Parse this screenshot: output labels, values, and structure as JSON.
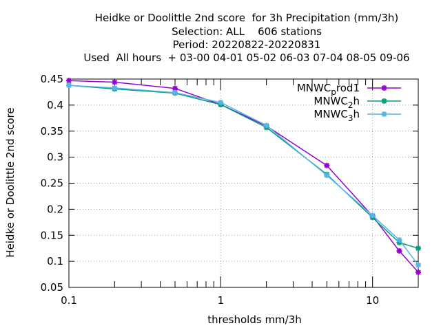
{
  "chart_data": {
    "type": "line",
    "title_lines": [
      "Heidke or Doolittle 2nd score  for 3h Precipitation (mm/3h)",
      "Selection: ALL    606 stations",
      "Period: 20220822-20220831",
      "Used  All hours  + 03-00 04-01 05-02 06-03 07-04 08-05 09-06"
    ],
    "xlabel": "thresholds mm/3h",
    "ylabel": "Heidke or Doolittle 2nd score",
    "x_scale": "log",
    "xlim": [
      0.1,
      20
    ],
    "ylim": [
      0.05,
      0.45
    ],
    "x_ticks": [
      0.1,
      1,
      10
    ],
    "x_tick_labels": [
      "0.1",
      "1",
      "10"
    ],
    "y_ticks": [
      0.05,
      0.1,
      0.15,
      0.2,
      0.25,
      0.3,
      0.35,
      0.4,
      0.45
    ],
    "y_tick_labels": [
      "0.05",
      "0.1",
      "0.15",
      "0.2",
      "0.25",
      "0.3",
      "0.35",
      "0.4",
      "0.45"
    ],
    "grid": "dotted, at labeled ticks",
    "legend_position": "top-right",
    "series": [
      {
        "name": "MNWC_prod1",
        "legend_parts": [
          "MNWC",
          "p",
          "rod1"
        ],
        "color": "#9400d3",
        "x": [
          0.1,
          0.2,
          0.5,
          1,
          2,
          5,
          10,
          15,
          20
        ],
        "values": [
          0.447,
          0.444,
          0.432,
          0.401,
          0.36,
          0.284,
          0.187,
          0.12,
          0.079
        ]
      },
      {
        "name": "MNWC_2h",
        "legend_parts": [
          "MNWC",
          "2",
          "h"
        ],
        "color": "#009e73",
        "x": [
          0.1,
          0.2,
          0.5,
          1,
          2,
          5,
          10,
          15,
          20
        ],
        "values": [
          0.438,
          0.431,
          0.423,
          0.401,
          0.357,
          0.267,
          0.184,
          0.136,
          0.125
        ]
      },
      {
        "name": "MNWC_3h",
        "legend_parts": [
          "MNWC",
          "3",
          "h"
        ],
        "color": "#56b4e9",
        "x": [
          0.1,
          0.2,
          0.5,
          1,
          2,
          5,
          10,
          15,
          20
        ],
        "values": [
          0.438,
          0.433,
          0.424,
          0.405,
          0.361,
          0.265,
          0.188,
          0.141,
          0.093
        ]
      }
    ]
  }
}
